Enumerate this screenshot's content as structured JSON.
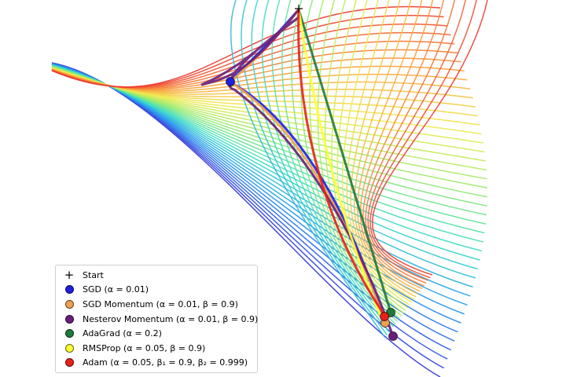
{
  "chart_data": {
    "type": "line",
    "title": "",
    "xlabel": "",
    "ylabel": "",
    "grid": false,
    "axes_visible": false,
    "background": "contour lines of the loss surface, colored by level (rainbow colormap)",
    "legend_position": "lower-left",
    "legend": [
      {
        "label": "Start",
        "marker": "plus",
        "color": "#000000"
      },
      {
        "label": "SGD (α = 0.01)",
        "marker": "circle",
        "color": "#1f1fe0"
      },
      {
        "label": "SGD Momentum (α = 0.01, β = 0.9)",
        "marker": "circle",
        "color": "#f0a050"
      },
      {
        "label": "Nesterov Momentum (α = 0.01, β = 0.9)",
        "marker": "circle",
        "color": "#6a1e7a"
      },
      {
        "label": "AdaGrad (α = 0.2)",
        "marker": "circle",
        "color": "#1f7a3a"
      },
      {
        "label": "RMSProp (α = 0.05, β = 0.9)",
        "marker": "circle",
        "color": "#ffff33"
      },
      {
        "label": "Adam (α = 0.05, β₁ = 0.9, β₂ = 0.999)",
        "marker": "circle",
        "color": "#e8201a"
      }
    ]
  }
}
